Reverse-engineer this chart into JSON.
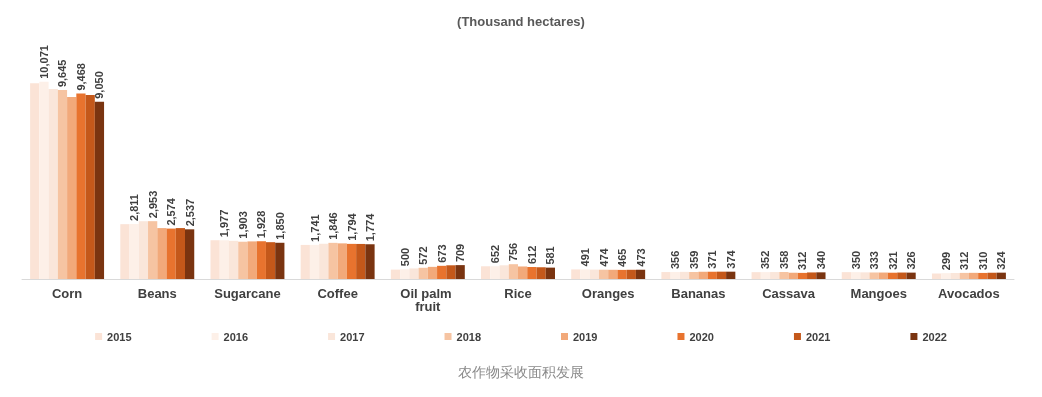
{
  "chart_data": {
    "type": "bar",
    "title": "(Thousand hectares)",
    "annotations": [
      "农作物采收面积发展"
    ],
    "categories": [
      "Corn",
      "Beans",
      "Sugarcane",
      "Coffee",
      "Oil palm fruit",
      "Rice",
      "Oranges",
      "Bananas",
      "Cassava",
      "Mangoes",
      "Avocados"
    ],
    "legend": "bottom",
    "series": [
      {
        "name": "2015",
        "color": "#fbe3d6",
        "values": [
          10000,
          2800,
          1980,
          1740,
          480,
          650,
          490,
          355,
          350,
          350,
          280
        ],
        "value_labels": [
          null,
          null,
          null,
          null,
          null,
          null,
          null,
          null,
          null,
          null,
          null
        ]
      },
      {
        "name": "2016",
        "color": "#fdf0e8",
        "values": [
          10071,
          2811,
          1977,
          1741,
          500,
          652,
          491,
          356,
          352,
          350,
          299
        ],
        "value_labels": [
          "10,071",
          "2,811",
          "1,977",
          "1,741",
          "500",
          "652",
          "491",
          "356",
          "352",
          "350",
          "299"
        ]
      },
      {
        "name": "2017",
        "color": "#fae6da",
        "values": [
          9700,
          2950,
          1950,
          1800,
          540,
          700,
          480,
          365,
          355,
          340,
          305
        ],
        "value_labels": [
          null,
          null,
          null,
          null,
          null,
          null,
          null,
          null,
          null,
          null,
          null
        ]
      },
      {
        "name": "2018",
        "color": "#f6c4a2",
        "values": [
          9645,
          2953,
          1903,
          1846,
          572,
          756,
          474,
          359,
          358,
          333,
          312
        ],
        "value_labels": [
          "9,645",
          "2,953",
          "1,903",
          "1,846",
          "572",
          "756",
          "474",
          "359",
          "358",
          "333",
          "312"
        ]
      },
      {
        "name": "2019",
        "color": "#f2a97a",
        "values": [
          9300,
          2600,
          1920,
          1820,
          620,
          640,
          470,
          370,
          320,
          330,
          315
        ],
        "value_labels": [
          null,
          null,
          null,
          null,
          null,
          null,
          null,
          null,
          null,
          null,
          null
        ]
      },
      {
        "name": "2020",
        "color": "#e8732e",
        "values": [
          9468,
          2574,
          1928,
          1794,
          673,
          612,
          465,
          371,
          312,
          321,
          310
        ],
        "value_labels": [
          "9,468",
          "2,574",
          "1,928",
          "1,794",
          "673",
          "612",
          "465",
          "371",
          "312",
          "321",
          "310"
        ]
      },
      {
        "name": "2021",
        "color": "#c4581a",
        "values": [
          9400,
          2600,
          1880,
          1790,
          700,
          600,
          470,
          375,
          335,
          330,
          320
        ],
        "value_labels": [
          null,
          null,
          null,
          null,
          null,
          null,
          null,
          null,
          null,
          null,
          null
        ]
      },
      {
        "name": "2022",
        "color": "#7a3410",
        "values": [
          9050,
          2537,
          1850,
          1774,
          709,
          581,
          473,
          374,
          340,
          326,
          324
        ],
        "value_labels": [
          "9,050",
          "2,537",
          "1,850",
          "1,774",
          "709",
          "581",
          "473",
          "374",
          "340",
          "326",
          "324"
        ]
      }
    ]
  }
}
